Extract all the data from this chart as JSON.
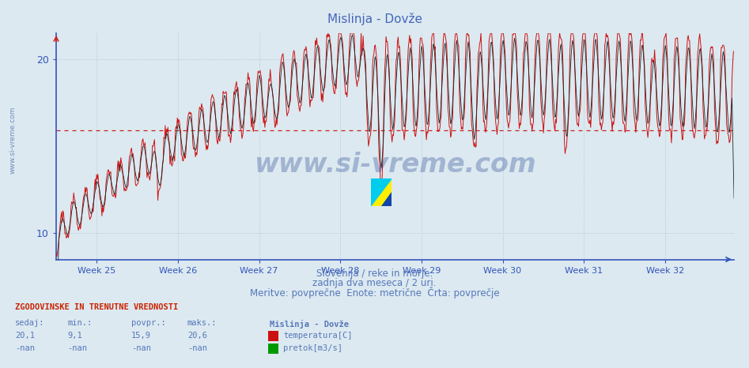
{
  "title": "Mislinja - Dovže",
  "title_color": "#4466bb",
  "bg_color": "#dce9f0",
  "plot_bg_color": "#dce9f0",
  "grid_color": "#b0c4d8",
  "axis_color": "#3355bb",
  "ylabel_ticks": [
    10,
    20
  ],
  "ylim_min": 8.5,
  "ylim_max": 21.5,
  "xlim_min": 24.5,
  "xlim_max": 32.85,
  "week_labels": [
    "Week 25",
    "Week 26",
    "Week 27",
    "Week 28",
    "Week 29",
    "Week 30",
    "Week 31",
    "Week 32"
  ],
  "week_positions": [
    25,
    26,
    27,
    28,
    29,
    30,
    31,
    32
  ],
  "avg_line_y": 15.9,
  "avg_line_color": "#cc2222",
  "temp_line_color": "#cc1111",
  "black_line_color": "#222222",
  "subtitle1": "Slovenija / reke in morje.",
  "subtitle2": "zadnja dva meseca / 2 uri.",
  "subtitle3": "Meritve: povprečne  Enote: metrične  Črta: povprečje",
  "subtitle_color": "#5577bb",
  "footer_header": "ZGODOVINSKE IN TRENUTNE VREDNOSTI",
  "footer_color": "#cc2200",
  "col_headers": [
    "sedaj:",
    "min.:",
    "povpr.:",
    "maks.:"
  ],
  "col_values_temp": [
    "20,1",
    "9,1",
    "15,9",
    "20,6"
  ],
  "col_values_flow": [
    "-nan",
    "-nan",
    "-nan",
    "-nan"
  ],
  "station_label": "Mislinja - Dovže",
  "legend_temp": "temperatura[C]",
  "legend_flow": "pretok[m3/s]",
  "legend_temp_color": "#cc1111",
  "legend_flow_color": "#009900",
  "watermark": "www.si-vreme.com",
  "watermark_color": "#1a3a8a",
  "left_watermark": "www.si-vreme.com"
}
